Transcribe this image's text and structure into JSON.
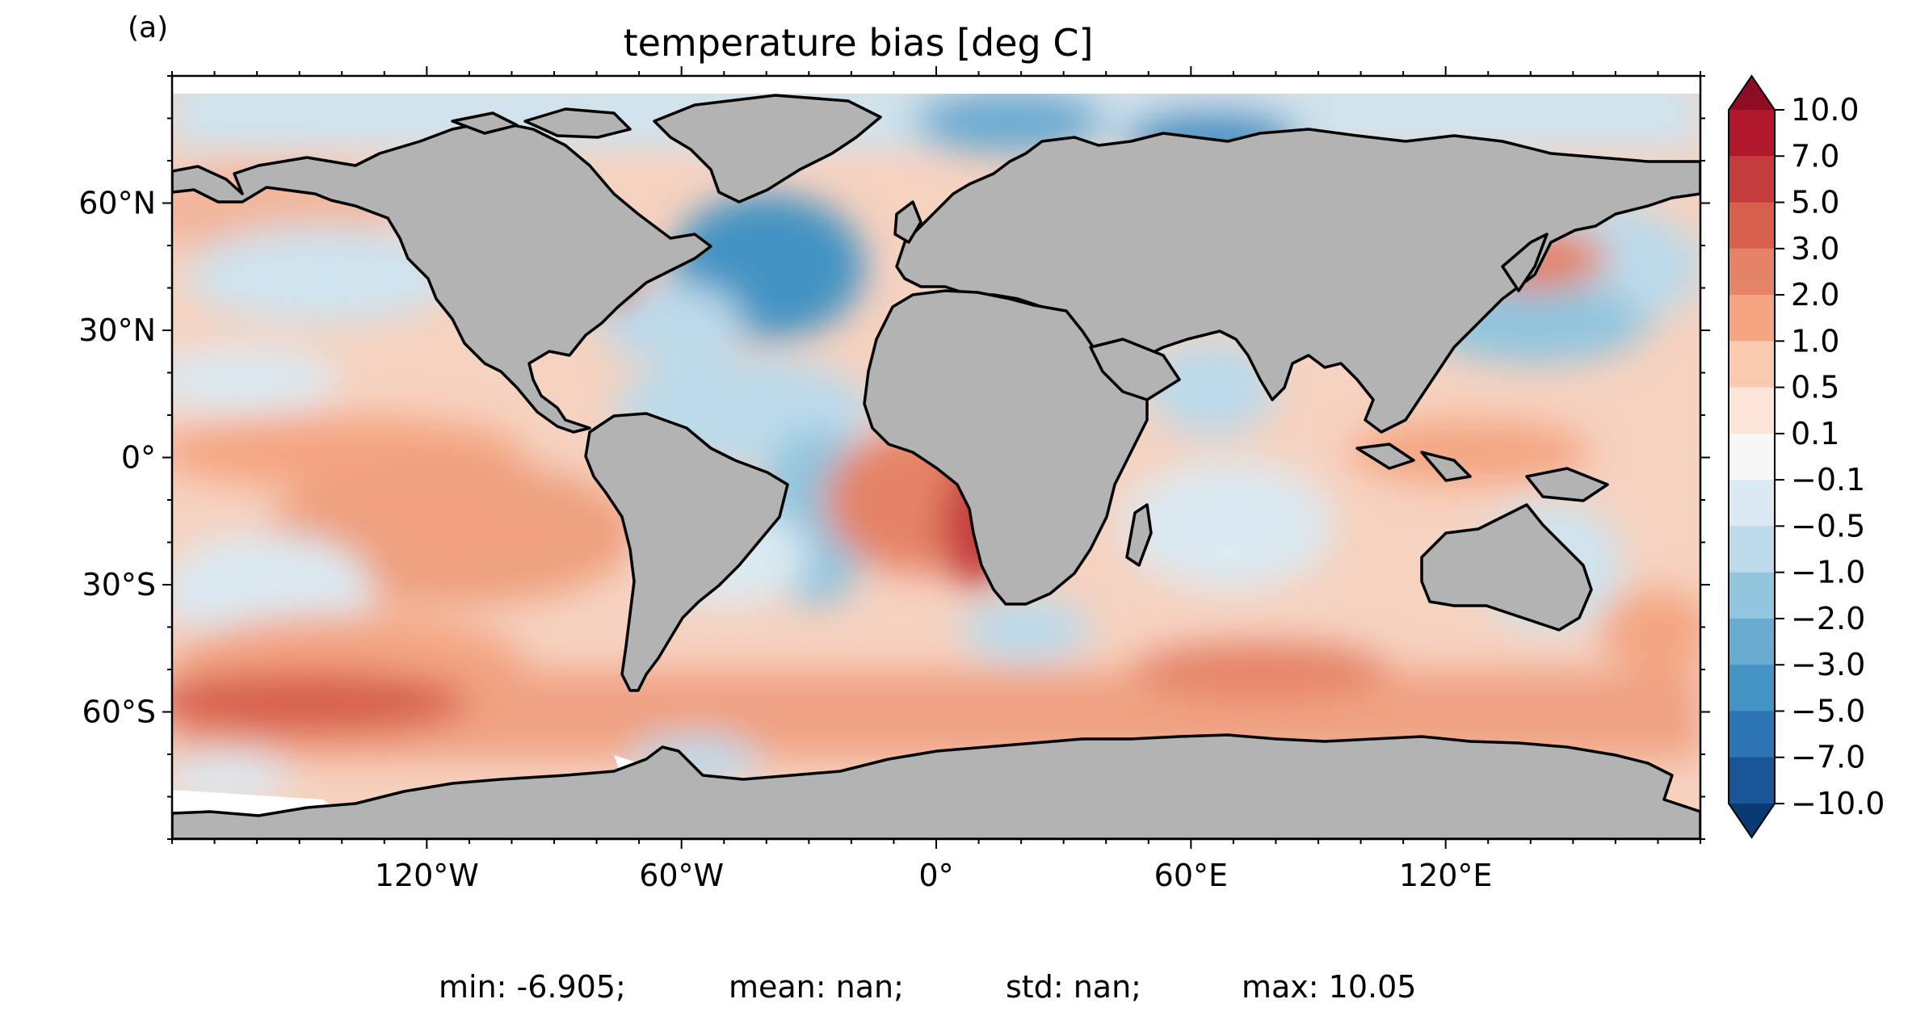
{
  "panel_label": "(a)",
  "title": "temperature bias [deg C]",
  "stats": {
    "min": "min: -6.905;",
    "mean": "mean: nan;",
    "std": "std: nan;",
    "max": "max: 10.05"
  },
  "colors": {
    "land": "#b3b3b3",
    "coast": "#000000",
    "ice": "#ffffff"
  },
  "colorbar": {
    "labels": [
      "10.0",
      "7.0",
      "5.0",
      "3.0",
      "2.0",
      "1.0",
      "0.5",
      "0.1",
      "−0.1",
      "−0.5",
      "−1.0",
      "−2.0",
      "−3.0",
      "−5.0",
      "−7.0",
      "−10.0"
    ],
    "colors": [
      "#8e0d25",
      "#b2182b",
      "#c43c3c",
      "#d6604d",
      "#e58368",
      "#f4a582",
      "#f9c9b0",
      "#fbe5d8",
      "#f7f7f7",
      "#dbeaf2",
      "#bcdaea",
      "#92c5de",
      "#6aabd1",
      "#4393c3",
      "#2c74b4",
      "#1a5597",
      "#0a3a72"
    ],
    "extend": "both"
  },
  "chart_data": {
    "type": "heatmap",
    "title": "temperature bias [deg C]",
    "x_ticks": [
      "120°W",
      "60°W",
      "0°",
      "60°E",
      "120°E"
    ],
    "x_tick_values": [
      -120,
      -60,
      0,
      60,
      120
    ],
    "y_ticks": [
      "60°N",
      "30°N",
      "0°",
      "30°S",
      "60°S"
    ],
    "y_tick_values": [
      60,
      30,
      0,
      -30,
      -60
    ],
    "xlim": [
      -180,
      180
    ],
    "ylim": [
      -90,
      90
    ],
    "colorbar_levels": [
      -10,
      -7,
      -5,
      -3,
      -2,
      -1,
      -0.5,
      -0.1,
      0.1,
      0.5,
      1,
      2,
      3,
      5,
      7,
      10
    ],
    "stats": {
      "min": -6.905,
      "mean": "nan",
      "std": "nan",
      "max": 10.05
    }
  }
}
